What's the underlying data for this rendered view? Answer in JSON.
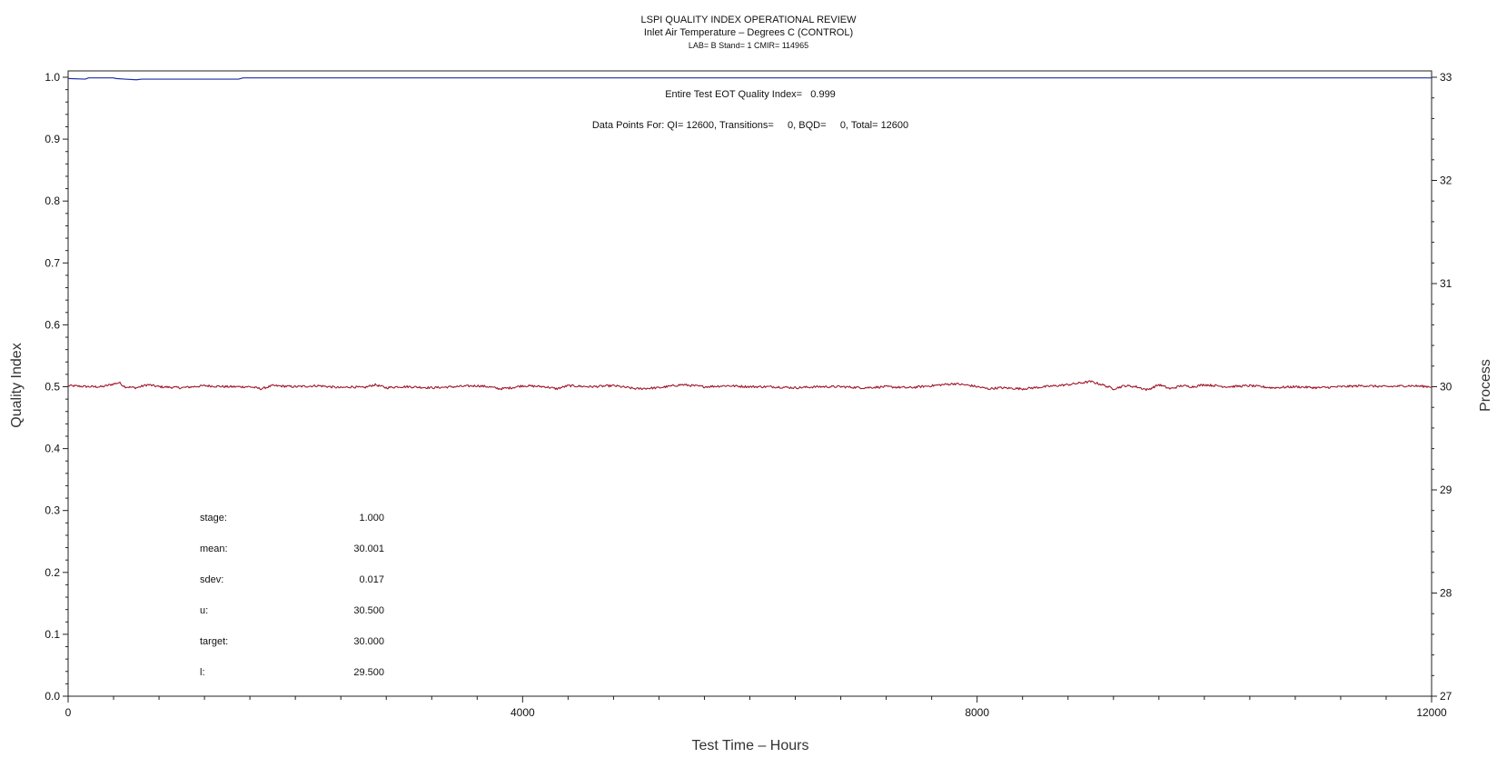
{
  "chart_data": {
    "type": "line",
    "title": "LSPI QUALITY INDEX OPERATIONAL REVIEW",
    "subtitle": "Inlet Air Temperature – Degrees C (CONTROL)",
    "subtitle2": "LAB= B Stand= 1 CMIR= 114965",
    "xlabel": "Test Time – Hours",
    "ylabel": "Quality Index",
    "y2label": "Process",
    "xlim": [
      0,
      12000
    ],
    "ylim": [
      0.0,
      1.0
    ],
    "y2lim": [
      27,
      33
    ],
    "x_ticks": [
      0,
      4000,
      8000,
      12000
    ],
    "y_ticks": [
      "0.0",
      "0.1",
      "0.2",
      "0.3",
      "0.4",
      "0.5",
      "0.6",
      "0.7",
      "0.8",
      "0.9",
      "1.0"
    ],
    "y2_ticks": [
      "27",
      "28",
      "29",
      "30",
      "31",
      "32",
      "33"
    ],
    "annotations": {
      "quality_index": "Entire Test EOT Quality Index=   0.999",
      "data_points": "Data Points For: QI= 12600, Transitions=     0, BQD=     0, Total= 12600"
    },
    "stats": [
      {
        "label": "stage:",
        "value": "1.000"
      },
      {
        "label": "mean:",
        "value": "30.001"
      },
      {
        "label": "sdev:",
        "value": "0.017"
      },
      {
        "label": "u:",
        "value": "30.500"
      },
      {
        "label": "target:",
        "value": "30.000"
      },
      {
        "label": "l:",
        "value": "29.500"
      }
    ],
    "series": [
      {
        "axis": "left",
        "color": "#1f2fa8",
        "x": [
          0,
          150,
          180,
          300,
          400,
          420,
          500,
          600,
          650,
          1200,
          1500,
          1540,
          1600,
          3000,
          6000,
          9000,
          12000
        ],
        "y": [
          0.998,
          0.997,
          0.999,
          0.999,
          0.999,
          0.998,
          0.997,
          0.996,
          0.997,
          0.997,
          0.997,
          0.999,
          0.999,
          0.999,
          0.999,
          0.999,
          0.999
        ]
      },
      {
        "axis": "right",
        "color": "#a0182b",
        "mean": 30.001,
        "sdev": 0.017,
        "x": [
          0,
          200,
          300,
          450,
          500,
          600,
          700,
          800,
          1000,
          1200,
          1400,
          1600,
          1700,
          1800,
          2000,
          2200,
          2400,
          2500,
          2600,
          2700,
          2800,
          2900,
          3000,
          3200,
          3400,
          3600,
          3700,
          3800,
          3900,
          4000,
          4200,
          4300,
          4400,
          4600,
          4800,
          5000,
          5200,
          5400,
          5600,
          5800,
          6000,
          6200,
          6400,
          6600,
          6800,
          7000,
          7200,
          7400,
          7600,
          7800,
          7950,
          8100,
          8200,
          8400,
          8600,
          8800,
          9000,
          9100,
          9200,
          9300,
          9400,
          9500,
          9600,
          9700,
          9800,
          9900,
          10000,
          10200,
          10400,
          10600,
          10800,
          11000,
          11200,
          11400,
          11600,
          11800,
          12000
        ],
        "y": [
          30.01,
          30.0,
          30.0,
          30.04,
          30.0,
          29.99,
          30.02,
          30.0,
          29.99,
          30.01,
          30.0,
          30.0,
          29.98,
          30.01,
          30.0,
          30.01,
          29.99,
          30.0,
          29.99,
          30.02,
          29.99,
          30.0,
          30.0,
          29.99,
          30.0,
          30.01,
          30.0,
          29.98,
          29.99,
          30.01,
          30.0,
          29.98,
          30.01,
          30.0,
          30.01,
          29.98,
          29.99,
          30.02,
          30.0,
          30.01,
          30.0,
          30.0,
          29.99,
          30.0,
          30.0,
          29.99,
          30.0,
          29.99,
          30.01,
          30.03,
          30.01,
          29.98,
          29.99,
          29.98,
          30.0,
          30.02,
          30.05,
          30.02,
          29.98,
          30.01,
          30.0,
          29.97,
          30.02,
          29.98,
          30.01,
          30.0,
          30.02,
          30.0,
          30.01,
          29.99,
          30.0,
          29.99,
          30.0,
          30.01,
          30.0,
          30.01,
          30.0
        ]
      }
    ],
    "grid": false,
    "legend": "none"
  }
}
